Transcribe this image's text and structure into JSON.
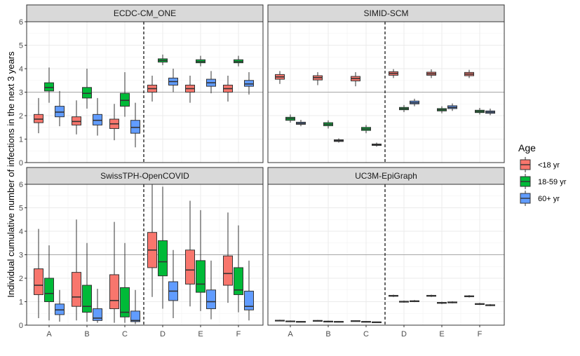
{
  "chart_data": {
    "type": "boxplot",
    "ylabel": "Individual cumulative number of infections in the next 3 years",
    "xlabel": "",
    "categories": [
      "A",
      "B",
      "C",
      "D",
      "E",
      "F"
    ],
    "ylim": [
      0,
      6
    ],
    "yticks": [
      0,
      1,
      2,
      3,
      4,
      5,
      6
    ],
    "reference_line_y": 3,
    "separator_between": [
      "C",
      "D"
    ],
    "grid": true,
    "legend": {
      "title": "Age",
      "position": "right",
      "entries": [
        {
          "label": "<18 yr",
          "color": "#F8766D"
        },
        {
          "label": "18-59 yr",
          "color": "#00BA38"
        },
        {
          "label": "60+ yr",
          "color": "#619CFF"
        }
      ]
    },
    "panels": [
      {
        "title": "ECDC-CM_ONE",
        "boxes": [
          [
            [
              1.25,
              1.7,
              1.85,
              2.05,
              2.75
            ],
            [
              2.55,
              3.05,
              3.2,
              3.4,
              4.05
            ],
            [
              1.55,
              1.95,
              2.15,
              2.4,
              3.05
            ]
          ],
          [
            [
              1.2,
              1.6,
              1.75,
              1.95,
              2.65
            ],
            [
              2.3,
              2.75,
              2.95,
              3.2,
              4.0
            ],
            [
              1.15,
              1.6,
              1.8,
              2.05,
              2.75
            ]
          ],
          [
            [
              0.95,
              1.45,
              1.65,
              1.85,
              2.5
            ],
            [
              1.95,
              2.4,
              2.65,
              2.95,
              3.85
            ],
            [
              0.65,
              1.25,
              1.5,
              1.8,
              2.55
            ]
          ],
          [
            [
              2.6,
              3.0,
              3.15,
              3.3,
              3.7
            ],
            [
              4.15,
              4.28,
              4.35,
              4.42,
              4.6
            ],
            [
              3.0,
              3.3,
              3.45,
              3.6,
              4.0
            ]
          ],
          [
            [
              2.55,
              3.0,
              3.15,
              3.3,
              3.7
            ],
            [
              4.1,
              4.25,
              4.3,
              4.38,
              4.55
            ],
            [
              2.95,
              3.25,
              3.4,
              3.55,
              3.9
            ]
          ],
          [
            [
              2.6,
              3.0,
              3.15,
              3.3,
              3.7
            ],
            [
              4.1,
              4.25,
              4.3,
              4.38,
              4.55
            ],
            [
              2.9,
              3.25,
              3.35,
              3.5,
              3.85
            ]
          ]
        ]
      },
      {
        "title": "SIMID-SCM",
        "boxes": [
          [
            [
              3.35,
              3.55,
              3.65,
              3.75,
              3.9
            ],
            [
              1.7,
              1.8,
              1.87,
              1.93,
              2.05
            ],
            [
              1.55,
              1.63,
              1.67,
              1.72,
              1.82
            ]
          ],
          [
            [
              3.3,
              3.52,
              3.62,
              3.7,
              3.85
            ],
            [
              1.45,
              1.57,
              1.63,
              1.7,
              1.8
            ],
            [
              0.85,
              0.9,
              0.93,
              0.97,
              1.03
            ]
          ],
          [
            [
              3.25,
              3.48,
              3.58,
              3.67,
              3.85
            ],
            [
              1.25,
              1.37,
              1.43,
              1.5,
              1.6
            ],
            [
              0.68,
              0.73,
              0.76,
              0.79,
              0.85
            ]
          ],
          [
            [
              3.6,
              3.72,
              3.8,
              3.87,
              3.98
            ],
            [
              2.15,
              2.25,
              2.3,
              2.35,
              2.45
            ],
            [
              2.4,
              2.5,
              2.55,
              2.62,
              2.72
            ]
          ],
          [
            [
              3.6,
              3.72,
              3.78,
              3.85,
              3.97
            ],
            [
              2.1,
              2.2,
              2.25,
              2.3,
              2.4
            ],
            [
              2.2,
              2.3,
              2.35,
              2.42,
              2.52
            ]
          ],
          [
            [
              3.6,
              3.7,
              3.77,
              3.84,
              3.95
            ],
            [
              2.05,
              2.13,
              2.18,
              2.23,
              2.33
            ],
            [
              2.02,
              2.1,
              2.15,
              2.2,
              2.3
            ]
          ]
        ]
      },
      {
        "title": "SwissTPH-OpenCOVID",
        "boxes": [
          [
            [
              0.3,
              1.3,
              1.7,
              2.4,
              4.1
            ],
            [
              0.2,
              1.0,
              1.35,
              2.0,
              3.4
            ],
            [
              0.15,
              0.45,
              0.65,
              0.9,
              1.5
            ]
          ],
          [
            [
              0.2,
              0.8,
              1.2,
              2.25,
              4.5
            ],
            [
              0.15,
              0.55,
              0.8,
              1.7,
              3.5
            ],
            [
              0.1,
              0.2,
              0.3,
              0.7,
              1.55
            ]
          ],
          [
            [
              0.1,
              0.7,
              1.05,
              2.15,
              4.4
            ],
            [
              0.1,
              0.35,
              0.55,
              1.6,
              3.5
            ],
            [
              0.05,
              0.15,
              0.2,
              0.6,
              1.5
            ]
          ],
          [
            [
              1.2,
              2.45,
              3.2,
              3.95,
              6.0
            ],
            [
              0.7,
              2.1,
              2.7,
              3.6,
              5.9
            ],
            [
              0.3,
              1.05,
              1.45,
              1.85,
              3.2
            ]
          ],
          [
            [
              0.8,
              1.75,
              2.35,
              3.2,
              5.3
            ],
            [
              0.6,
              1.4,
              1.75,
              2.75,
              4.9
            ],
            [
              0.25,
              0.7,
              1.0,
              1.5,
              2.75
            ]
          ],
          [
            [
              0.95,
              1.7,
              2.2,
              2.95,
              4.8
            ],
            [
              0.55,
              1.3,
              1.5,
              2.45,
              4.25
            ],
            [
              0.2,
              0.65,
              0.8,
              1.45,
              2.75
            ]
          ]
        ]
      },
      {
        "title": "UC3M-EpiGraph",
        "boxes": [
          [
            [
              0.17,
              0.19,
              0.2,
              0.21,
              0.23
            ],
            [
              0.15,
              0.16,
              0.17,
              0.18,
              0.2
            ],
            [
              0.13,
              0.14,
              0.15,
              0.16,
              0.18
            ]
          ],
          [
            [
              0.16,
              0.18,
              0.19,
              0.2,
              0.22
            ],
            [
              0.14,
              0.15,
              0.16,
              0.17,
              0.19
            ],
            [
              0.13,
              0.14,
              0.15,
              0.16,
              0.17
            ]
          ],
          [
            [
              0.15,
              0.17,
              0.18,
              0.19,
              0.21
            ],
            [
              0.13,
              0.14,
              0.15,
              0.16,
              0.18
            ],
            [
              0.11,
              0.12,
              0.13,
              0.14,
              0.15
            ]
          ],
          [
            [
              1.2,
              1.23,
              1.25,
              1.27,
              1.3
            ],
            [
              0.96,
              0.98,
              1.0,
              1.02,
              1.05
            ],
            [
              0.98,
              1.0,
              1.02,
              1.04,
              1.07
            ]
          ],
          [
            [
              1.2,
              1.23,
              1.25,
              1.27,
              1.3
            ],
            [
              0.9,
              0.93,
              0.95,
              0.97,
              1.0
            ],
            [
              0.93,
              0.95,
              0.97,
              0.99,
              1.02
            ]
          ],
          [
            [
              1.18,
              1.21,
              1.23,
              1.25,
              1.28
            ],
            [
              0.86,
              0.88,
              0.9,
              0.92,
              0.95
            ],
            [
              0.81,
              0.83,
              0.85,
              0.87,
              0.9
            ]
          ]
        ]
      }
    ]
  }
}
